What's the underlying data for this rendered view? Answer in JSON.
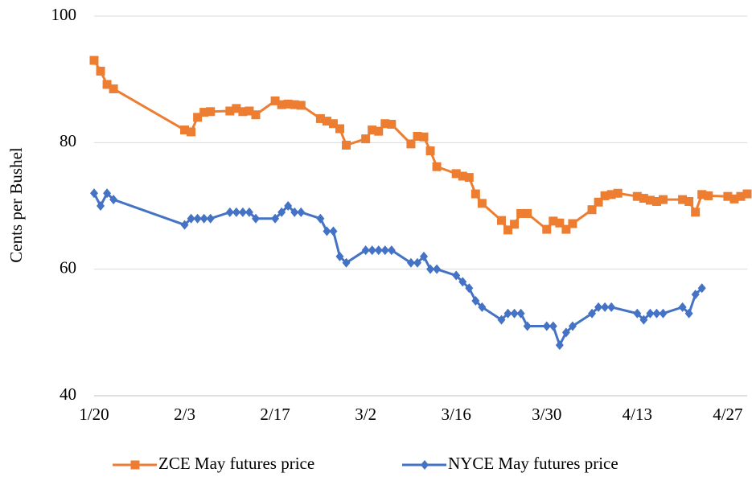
{
  "chart_data": {
    "type": "line",
    "y_label": "Cents per Bushel",
    "xlim": [
      "1/20",
      "4/30"
    ],
    "xticks": [
      "1/20",
      "2/3",
      "2/17",
      "3/2",
      "3/16",
      "3/30",
      "4/13",
      "4/27"
    ],
    "ylim": [
      40,
      100
    ],
    "yticks": [
      40,
      60,
      80,
      100
    ],
    "grid": true,
    "legend": "bottom",
    "series": [
      {
        "name": "ZCE May futures price",
        "color": "#ed7d31",
        "marker": "square",
        "x": [
          "1/20",
          "1/21",
          "1/22",
          "1/23",
          "2/3",
          "2/4",
          "2/5",
          "2/6",
          "2/7",
          "2/10",
          "2/11",
          "2/12",
          "2/13",
          "2/14",
          "2/17",
          "2/18",
          "2/19",
          "2/20",
          "2/21",
          "2/24",
          "2/25",
          "2/26",
          "2/27",
          "2/28",
          "3/2",
          "3/3",
          "3/4",
          "3/5",
          "3/6",
          "3/9",
          "3/10",
          "3/11",
          "3/12",
          "3/13",
          "3/16",
          "3/17",
          "3/18",
          "3/19",
          "3/20",
          "3/23",
          "3/24",
          "3/25",
          "3/26",
          "3/27",
          "3/30",
          "3/31",
          "4/1",
          "4/2",
          "4/3",
          "4/6",
          "4/7",
          "4/8",
          "4/9",
          "4/10",
          "4/13",
          "4/14",
          "4/15",
          "4/16",
          "4/17",
          "4/20",
          "4/21",
          "4/22",
          "4/23",
          "4/24",
          "4/27",
          "4/28",
          "4/29",
          "4/30"
        ],
        "values": [
          93,
          91.3,
          89.2,
          88.5,
          82,
          81.7,
          84,
          84.8,
          84.9,
          85,
          85.4,
          84.9,
          85,
          84.4,
          86.6,
          86,
          86.1,
          86,
          85.9,
          83.8,
          83.4,
          83,
          82.2,
          79.6,
          80.6,
          82,
          81.8,
          83,
          82.9,
          79.8,
          81,
          80.9,
          78.7,
          76.2,
          75.1,
          74.7,
          74.5,
          71.9,
          70.4,
          67.7,
          66.2,
          67.1,
          68.8,
          68.8,
          66.3,
          67.6,
          67.3,
          66.3,
          67.2,
          69.4,
          70.6,
          71.6,
          71.8,
          72,
          71.5,
          71.2,
          70.9,
          70.7,
          71,
          71,
          70.7,
          69,
          71.8,
          71.6,
          71.5,
          71.1,
          71.5,
          71.9
        ]
      },
      {
        "name": "NYCE May futures price",
        "color": "#4472c4",
        "marker": "diamond",
        "x": [
          "1/20",
          "1/21",
          "1/22",
          "1/23",
          "2/3",
          "2/4",
          "2/5",
          "2/6",
          "2/7",
          "2/10",
          "2/11",
          "2/12",
          "2/13",
          "2/14",
          "2/17",
          "2/18",
          "2/19",
          "2/20",
          "2/21",
          "2/24",
          "2/25",
          "2/26",
          "2/27",
          "2/28",
          "3/2",
          "3/3",
          "3/4",
          "3/5",
          "3/6",
          "3/9",
          "3/10",
          "3/11",
          "3/12",
          "3/13",
          "3/16",
          "3/17",
          "3/18",
          "3/19",
          "3/20",
          "3/23",
          "3/24",
          "3/25",
          "3/26",
          "3/27",
          "3/30",
          "3/31",
          "4/1",
          "4/2",
          "4/3",
          "4/6",
          "4/7",
          "4/8",
          "4/9",
          "4/13",
          "4/14",
          "4/15",
          "4/16",
          "4/17",
          "4/20",
          "4/21",
          "4/22",
          "4/23"
        ],
        "values": [
          72,
          70,
          72,
          71,
          67,
          68,
          68,
          68,
          68,
          69,
          69,
          69,
          69,
          68,
          68,
          69,
          70,
          69,
          69,
          68,
          66,
          66,
          62,
          61,
          63,
          63,
          63,
          63,
          63,
          61,
          61,
          62,
          60,
          60,
          59,
          58,
          57,
          55,
          54,
          52,
          53,
          53,
          53,
          51,
          51,
          51,
          48,
          50,
          51,
          53,
          54,
          54,
          54,
          53,
          52,
          53,
          53,
          53,
          54,
          53,
          56,
          57
        ]
      }
    ]
  }
}
